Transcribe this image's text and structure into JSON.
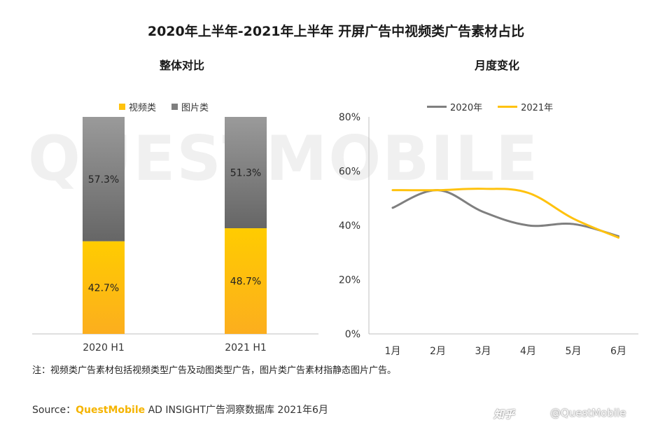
{
  "title": "2020年上半年-2021年上半年 开屏广告中视频类广告素材占比",
  "watermark_text": "QUESTMOBILE",
  "chart_data": [
    {
      "type": "bar",
      "subtitle": "整体对比",
      "stacked": true,
      "percent_stacked": true,
      "categories": [
        "2020 H1",
        "2021 H1"
      ],
      "series": [
        {
          "name": "视频类",
          "color": "#ffc20e",
          "values": [
            42.7,
            48.7
          ],
          "labels": [
            "42.7%",
            "48.7%"
          ]
        },
        {
          "name": "图片类",
          "color": "#7f7f7f",
          "values": [
            57.3,
            51.3
          ],
          "labels": [
            "57.3%",
            "51.3%"
          ]
        }
      ],
      "legend_position": "top"
    },
    {
      "type": "line",
      "subtitle": "月度变化",
      "x": [
        "1月",
        "2月",
        "3月",
        "4月",
        "5月",
        "6月"
      ],
      "series": [
        {
          "name": "2020年",
          "color": "#7f7f7f",
          "values": [
            46.5,
            53,
            45,
            40,
            40.5,
            36
          ]
        },
        {
          "name": "2021年",
          "color": "#ffc20e",
          "values": [
            53,
            53,
            53.5,
            52,
            42.5,
            35.5
          ]
        }
      ],
      "yticks": [
        "0%",
        "20%",
        "40%",
        "60%",
        "80%"
      ],
      "ylim": [
        0,
        80
      ],
      "legend_position": "top"
    }
  ],
  "note": "注：视频类广告素材包括视频类型广告及动图类型广告，图片类广告素材指静态图片广告。",
  "source": {
    "prefix": "Source：",
    "brand": "QuestMobile",
    "rest": " AD INSIGHT广告洞察数据库 2021年6月"
  },
  "footer_mark": "@QuestMobile",
  "footer_logo_text": "知乎"
}
